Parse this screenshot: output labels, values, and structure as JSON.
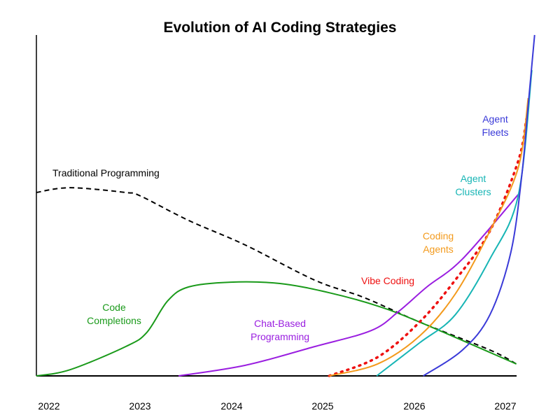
{
  "chart_data": {
    "type": "line",
    "title": "Evolution of AI Coding Strategies",
    "xlabel": "",
    "ylabel": "",
    "x_ticks": [
      "2022",
      "2023",
      "2024",
      "2025",
      "2026",
      "2027"
    ],
    "xlim": [
      2021.86,
      2027.33
    ],
    "ylim": [
      0,
      100
    ],
    "y_ticks_shown": false,
    "grid": false,
    "legend": "none (inline labels)",
    "series": [
      {
        "name": "Traditional Programming",
        "color": "#000000",
        "style": "dashed",
        "x": [
          2021.86,
          2022.23,
          2022.84,
          2023.0,
          2023.53,
          2024.15,
          2024.91,
          2025.45,
          2026.06,
          2026.83,
          2027.12
        ],
        "y": [
          53.8,
          55.2,
          53.8,
          52.8,
          45.6,
          38.4,
          28.1,
          23.0,
          15.8,
          7.6,
          3.5
        ]
      },
      {
        "name": "Code Completions",
        "color": "#1a9a1a",
        "style": "solid",
        "x": [
          2021.86,
          2022.23,
          2022.84,
          2023.07,
          2023.3,
          2023.53,
          2023.99,
          2024.53,
          2025.07,
          2025.6,
          2026.06,
          2027.12
        ],
        "y": [
          0,
          1.8,
          8.6,
          12.7,
          22.0,
          26.1,
          27.5,
          27.1,
          24.4,
          20.5,
          15.8,
          3.5
        ]
      },
      {
        "name": "Chat-Based Programming",
        "color": "#9a1ee0",
        "style": "solid",
        "x": [
          2023.42,
          2024.15,
          2024.91,
          2025.53,
          2025.83,
          2026.14,
          2026.53,
          2027.14
        ],
        "y": [
          0,
          3.1,
          8.6,
          13.3,
          18.9,
          26.1,
          34.3,
          53.2
        ]
      },
      {
        "name": "Vibe Coding",
        "color": "#ee1111",
        "style": "dotted",
        "x": [
          2025.07,
          2025.6,
          2026.06,
          2026.45,
          2026.83,
          2027.14,
          2027.23
        ],
        "y": [
          0,
          5.5,
          15.8,
          28.1,
          42.5,
          63.0,
          75.4
        ]
      },
      {
        "name": "Coding Agents",
        "color": "#f39a1c",
        "style": "solid",
        "x": [
          2025.07,
          2025.6,
          2026.06,
          2026.45,
          2026.83,
          2027.14,
          2027.25
        ],
        "y": [
          0,
          3.5,
          11.7,
          24.0,
          42.5,
          61.0,
          81.5
        ]
      },
      {
        "name": "Agent Clusters",
        "color": "#17b5b5",
        "style": "solid",
        "x": [
          2025.59,
          2026.06,
          2026.45,
          2026.83,
          2027.14,
          2027.29
        ],
        "y": [
          0,
          9.7,
          17.9,
          34.3,
          52.8,
          89.7
        ]
      },
      {
        "name": "Agent Fleets",
        "color": "#3a3ad8",
        "style": "solid",
        "x": [
          2026.1,
          2026.53,
          2026.83,
          2027.06,
          2027.18,
          2027.25,
          2027.32
        ],
        "y": [
          0,
          7.6,
          17.9,
          36.3,
          58.9,
          79.5,
          100
        ]
      }
    ],
    "labels": {
      "traditional": "Traditional Programming",
      "code_completions": [
        "Code",
        "Completions"
      ],
      "chat_based": [
        "Chat-Based",
        "Programming"
      ],
      "vibe": "Vibe Coding",
      "coding_agents": [
        "Coding",
        "Agents"
      ],
      "agent_clusters": [
        "Agent",
        "Clusters"
      ],
      "agent_fleets": [
        "Agent",
        "Fleets"
      ]
    }
  }
}
